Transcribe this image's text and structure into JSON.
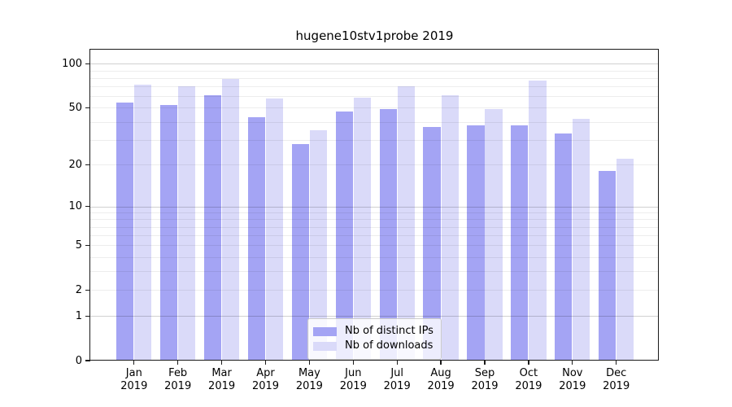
{
  "figure": {
    "background": "#ffffff"
  },
  "chart_data": {
    "type": "bar",
    "title": "hugene10stv1probe 2019",
    "categories": [
      "Jan",
      "Feb",
      "Mar",
      "Apr",
      "May",
      "Jun",
      "Jul",
      "Aug",
      "Sep",
      "Oct",
      "Nov",
      "Dec"
    ],
    "category_year": "2019",
    "series": [
      {
        "name": "Nb of distinct IPs",
        "color": "#a4a4f4",
        "values": [
          54,
          52,
          61,
          43,
          28,
          47,
          49,
          37,
          38,
          38,
          33,
          18
        ]
      },
      {
        "name": "Nb of downloads",
        "color": "#dadaf9",
        "values": [
          72,
          70,
          79,
          58,
          35,
          59,
          70,
          61,
          49,
          77,
          42,
          22
        ]
      }
    ],
    "xlabel": "",
    "ylabel": "",
    "yscale": "log1p",
    "yticks": [
      0,
      1,
      2,
      5,
      10,
      20,
      50,
      100
    ],
    "ylim": [
      0,
      125
    ],
    "grid": "on",
    "legend_position": "lower center",
    "colors": {
      "major_gridline": "rgba(0,0,0,0.18)",
      "minor_gridline": "rgba(0,0,0,0.07)",
      "spine": "#1a1a1a",
      "text": "#000000"
    }
  }
}
